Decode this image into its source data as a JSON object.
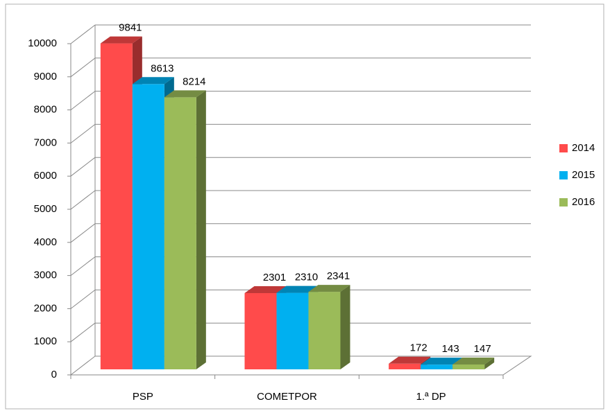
{
  "chart_data": {
    "type": "bar",
    "categories": [
      "PSP",
      "COMETPOR",
      "1.ª DP"
    ],
    "series": [
      {
        "name": "2014",
        "color": "#ff4b4b",
        "values": [
          9841,
          2301,
          172
        ]
      },
      {
        "name": "2015",
        "color": "#00b0f0",
        "values": [
          8613,
          2310,
          143
        ]
      },
      {
        "name": "2016",
        "color": "#9bbb59",
        "values": [
          8214,
          2341,
          147
        ]
      }
    ],
    "ylim": [
      0,
      10000
    ],
    "yticks": [
      0,
      1000,
      2000,
      3000,
      4000,
      5000,
      6000,
      7000,
      8000,
      9000,
      10000
    ],
    "grid": true,
    "legend": "right"
  }
}
